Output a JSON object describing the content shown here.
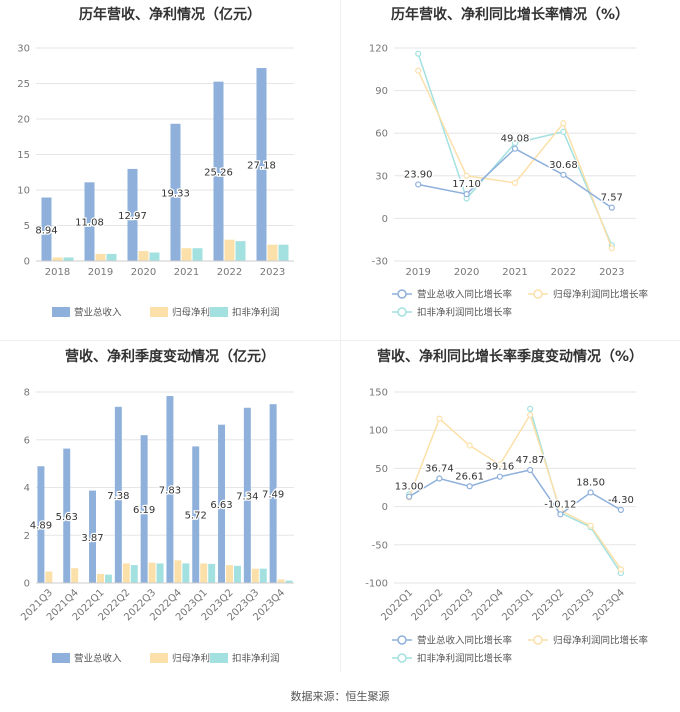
{
  "source_label": "数据来源：恒生聚源",
  "colors": {
    "revenue": "#8eb0db",
    "net_profit": "#fce0aa",
    "deducted_profit": "#a3e1e1",
    "grid": "#e6e6e6",
    "axis_text": "#777777",
    "label_text": "#333333"
  },
  "chart_data": [
    {
      "type": "bar",
      "title": "历年营收、净利情况（亿元）",
      "categories": [
        "2018",
        "2019",
        "2020",
        "2021",
        "2022",
        "2023"
      ],
      "ylim": [
        0,
        30
      ],
      "yticks": [
        0,
        5,
        10,
        15,
        20,
        25,
        30
      ],
      "ytick_labels": [
        "0",
        "5",
        "10",
        "15",
        "20",
        "25",
        "30"
      ],
      "series": [
        {
          "name": "营业总收入",
          "values": [
            8.94,
            11.08,
            12.97,
            19.33,
            25.26,
            27.18
          ],
          "labels": [
            "8.94",
            "11.08",
            "12.97",
            "19.33",
            "25.26",
            "27.18"
          ]
        },
        {
          "name": "归母净利润",
          "values": [
            0.5,
            1.0,
            1.4,
            1.8,
            3.0,
            2.3
          ]
        },
        {
          "name": "扣非净利润",
          "values": [
            0.5,
            1.0,
            1.2,
            1.8,
            2.8,
            2.3
          ]
        }
      ],
      "legend": "bottom"
    },
    {
      "type": "line",
      "title": "历年营收、净利同比增长率情况（%）",
      "categories": [
        "2019",
        "2020",
        "2021",
        "2022",
        "2023"
      ],
      "ylim": [
        -30,
        120
      ],
      "yticks": [
        -30,
        0,
        30,
        60,
        90,
        120
      ],
      "ytick_labels": [
        "-30",
        "0",
        "30",
        "60",
        "90",
        "120"
      ],
      "series": [
        {
          "name": "营业总收入同比增长率",
          "values": [
            23.9,
            17.1,
            49.08,
            30.68,
            7.57
          ],
          "labels": [
            "23.90",
            "17.10",
            "49.08",
            "30.68",
            "7.57"
          ]
        },
        {
          "name": "归母净利润同比增长率",
          "values": [
            104,
            30,
            25,
            67,
            -21
          ]
        },
        {
          "name": "扣非净利润同比增长率",
          "values": [
            116,
            14,
            53,
            61,
            -19
          ]
        }
      ],
      "legend": "bottom"
    },
    {
      "type": "bar",
      "title": "营收、净利季度变动情况（亿元）",
      "categories": [
        "2021Q3",
        "2021Q4",
        "2022Q1",
        "2022Q2",
        "2022Q3",
        "2022Q4",
        "2023Q1",
        "2023Q2",
        "2023Q3",
        "2023Q4"
      ],
      "ylim": [
        0,
        8
      ],
      "yticks": [
        0,
        2,
        4,
        6,
        8
      ],
      "ytick_labels": [
        "0",
        "2",
        "4",
        "6",
        "8"
      ],
      "series": [
        {
          "name": "营业总收入",
          "values": [
            4.89,
            5.63,
            3.87,
            7.38,
            6.19,
            7.83,
            5.72,
            6.63,
            7.34,
            7.49
          ],
          "labels": [
            "4.89",
            "5.63",
            "3.87",
            "7.38",
            "6.19",
            "7.83",
            "5.72",
            "6.63",
            "7.34",
            "7.49"
          ]
        },
        {
          "name": "归母净利润",
          "values": [
            0.48,
            0.62,
            0.38,
            0.82,
            0.85,
            0.95,
            0.82,
            0.75,
            0.6,
            0.15
          ]
        },
        {
          "name": "扣非净利润",
          "values": [
            0.0,
            0.0,
            0.35,
            0.75,
            0.82,
            0.82,
            0.8,
            0.72,
            0.6,
            0.1
          ]
        }
      ],
      "legend": "bottom"
    },
    {
      "type": "line",
      "title": "营收、净利同比增长率季度变动情况（%）",
      "categories": [
        "2022Q1",
        "2022Q2",
        "2022Q3",
        "2022Q4",
        "2023Q1",
        "2023Q2",
        "2023Q3",
        "2023Q4"
      ],
      "ylim": [
        -100,
        150
      ],
      "yticks": [
        -100,
        -50,
        0,
        50,
        100,
        150
      ],
      "ytick_labels": [
        "-100",
        "-50",
        "0",
        "50",
        "100",
        "150"
      ],
      "series": [
        {
          "name": "营业总收入同比增长率",
          "values": [
            13.0,
            36.74,
            26.61,
            39.16,
            47.87,
            -10.12,
            18.5,
            -4.3
          ],
          "labels": [
            "13.00",
            "36.74",
            "26.61",
            "39.16",
            "47.87",
            "-10.12",
            "18.50",
            "-4.30"
          ]
        },
        {
          "name": "归母净利润同比增长率",
          "values": [
            12,
            115,
            80,
            55,
            120,
            -5,
            -25,
            -82
          ]
        },
        {
          "name": "扣非净利润同比增长率",
          "values": [
            16,
            null,
            null,
            null,
            128,
            -8,
            -27,
            -87
          ]
        }
      ],
      "legend": "bottom"
    }
  ]
}
